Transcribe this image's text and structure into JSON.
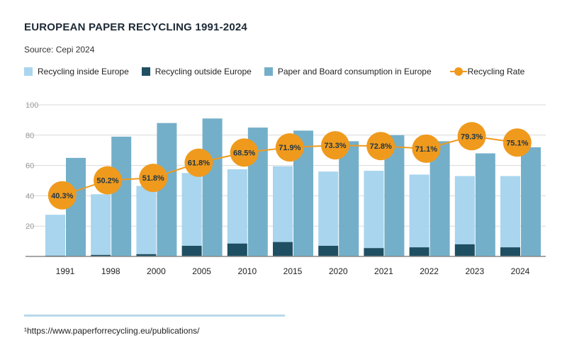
{
  "header": {
    "title": "EUROPEAN PAPER RECYCLING 1991-2024",
    "source": "Source: Cepi 2024"
  },
  "footnote": "¹https://www.paperforrecycling.eu/publications/",
  "colors": {
    "inside": "#a9d5ee",
    "outside": "#1f4f63",
    "consumption": "#74afc9",
    "rate": "#ef9a1d",
    "axis": "#888888",
    "grid": "#d9d9d9"
  },
  "chart_data": {
    "type": "bar",
    "title": "EUROPEAN PAPER RECYCLING 1991-2024",
    "ylim": [
      0,
      100
    ],
    "yticks": [
      20,
      40,
      60,
      80,
      100
    ],
    "grid": "horizontal",
    "legend_position": "top",
    "categories": [
      "1991",
      "1998",
      "2000",
      "2005",
      "2010",
      "2015",
      "2020",
      "2021",
      "2022",
      "2023",
      "2024"
    ],
    "series": [
      {
        "name": "Recycling inside Europe",
        "type": "stacked-bar",
        "values": [
          27,
          40,
          45,
          48,
          49,
          50,
          49,
          51,
          48,
          45,
          47
        ]
      },
      {
        "name": "Recycling outside Europe",
        "type": "stacked-bar",
        "values": [
          0.5,
          1,
          1.5,
          7,
          8.5,
          9.5,
          7,
          5.5,
          6,
          8,
          6
        ]
      },
      {
        "name": "Paper and Board consumption in Europe",
        "type": "bar",
        "values": [
          65,
          79,
          88,
          91,
          85,
          83,
          76,
          80,
          76,
          68,
          72
        ]
      },
      {
        "name": "Recycling Rate",
        "type": "line",
        "values": [
          40.3,
          50.2,
          51.8,
          61.8,
          68.5,
          71.9,
          73.3,
          72.8,
          71.1,
          79.3,
          75.1
        ],
        "labels": [
          "40.3%",
          "50.2%",
          "51.8%",
          "61.8%",
          "68.5%",
          "71.9%",
          "73.3%",
          "72.8%",
          "71.1%",
          "79.3%",
          "75.1%"
        ]
      }
    ]
  }
}
